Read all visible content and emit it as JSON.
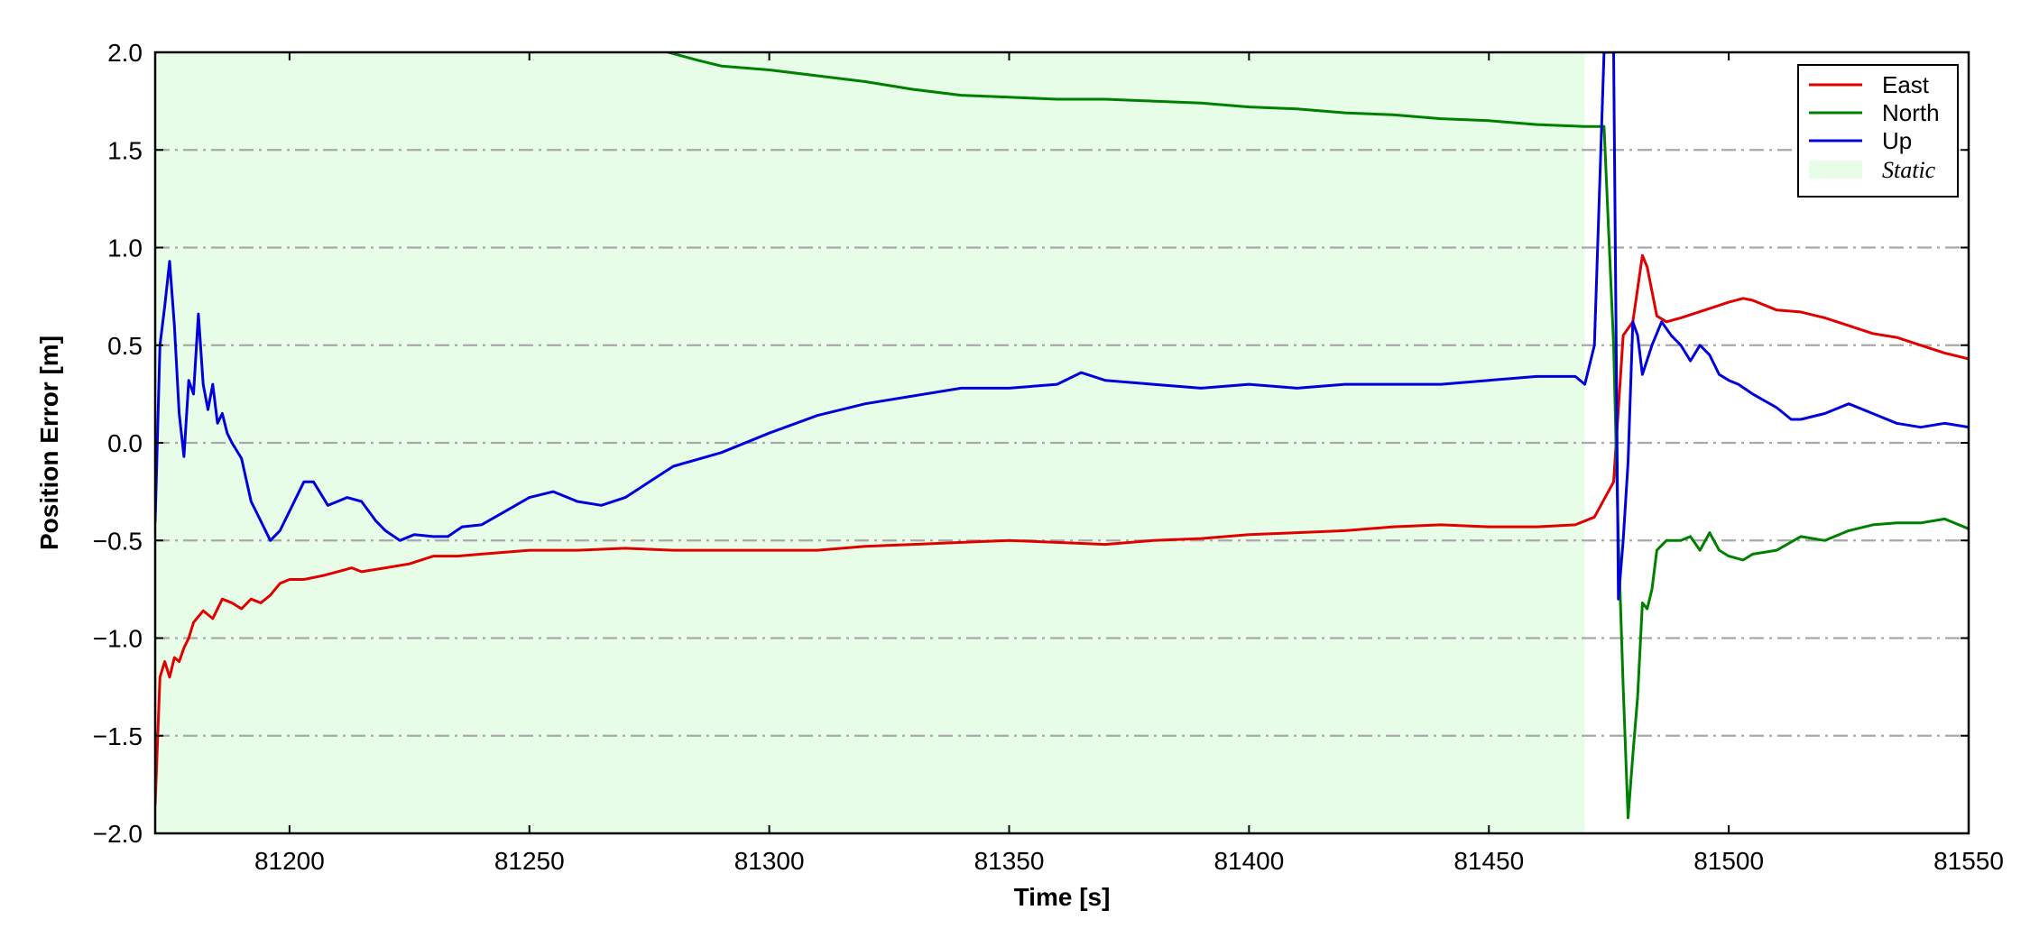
{
  "chart_data": {
    "type": "line",
    "xlabel": "Time [s]",
    "ylabel": "Position Error [m]",
    "xlim": [
      81172,
      81550
    ],
    "ylim": [
      -2.0,
      2.0
    ],
    "xticks": [
      81200,
      81250,
      81300,
      81350,
      81400,
      81450,
      81500,
      81550
    ],
    "xtick_labels": [
      "81200",
      "81250",
      "81300",
      "81350",
      "81400",
      "81450",
      "81500",
      "81550"
    ],
    "yticks": [
      -2.0,
      -1.5,
      -1.0,
      -0.5,
      0.0,
      0.5,
      1.0,
      1.5,
      2.0
    ],
    "ytick_labels": [
      "−2.0",
      "−1.5",
      "−1.0",
      "−0.5",
      "0.0",
      "0.5",
      "1.0",
      "1.5",
      "2.0"
    ],
    "grid": "horizontal dash-dot",
    "legend_position": "top-right",
    "shaded_regions": [
      {
        "name": "Static",
        "x": [
          81172,
          81470
        ],
        "color": "#e8fde8"
      }
    ],
    "series": [
      {
        "name": "East",
        "color": "#e00000",
        "x": [
          81172,
          81173,
          81174,
          81175,
          81176,
          81177,
          81178,
          81179,
          81180,
          81182,
          81183,
          81184,
          81186,
          81188,
          81190,
          81192,
          81194,
          81196,
          81198,
          81200,
          81203,
          81207,
          81210,
          81213,
          81215,
          81220,
          81225,
          81230,
          81235,
          81240,
          81245,
          81250,
          81260,
          81270,
          81280,
          81290,
          81300,
          81310,
          81320,
          81330,
          81340,
          81350,
          81360,
          81370,
          81380,
          81390,
          81400,
          81410,
          81420,
          81430,
          81440,
          81450,
          81460,
          81468,
          81472,
          81476,
          81478,
          81480,
          81482,
          81483,
          81485,
          81487,
          81490,
          81495,
          81500,
          81503,
          81505,
          81510,
          81515,
          81520,
          81525,
          81530,
          81535,
          81540,
          81545,
          81550
        ],
        "y": [
          -1.85,
          -1.2,
          -1.12,
          -1.2,
          -1.1,
          -1.12,
          -1.05,
          -1.0,
          -0.92,
          -0.86,
          -0.88,
          -0.9,
          -0.8,
          -0.82,
          -0.85,
          -0.8,
          -0.82,
          -0.78,
          -0.72,
          -0.7,
          -0.7,
          -0.68,
          -0.66,
          -0.64,
          -0.66,
          -0.64,
          -0.62,
          -0.58,
          -0.58,
          -0.57,
          -0.56,
          -0.55,
          -0.55,
          -0.54,
          -0.55,
          -0.55,
          -0.55,
          -0.55,
          -0.53,
          -0.52,
          -0.51,
          -0.5,
          -0.51,
          -0.52,
          -0.5,
          -0.49,
          -0.47,
          -0.46,
          -0.45,
          -0.43,
          -0.42,
          -0.43,
          -0.43,
          -0.42,
          -0.38,
          -0.2,
          0.55,
          0.62,
          0.96,
          0.9,
          0.65,
          0.62,
          0.64,
          0.68,
          0.72,
          0.74,
          0.73,
          0.68,
          0.67,
          0.64,
          0.6,
          0.56,
          0.54,
          0.5,
          0.46,
          0.43
        ]
      },
      {
        "name": "North",
        "color": "#008000",
        "x": [
          81279,
          81285,
          81290,
          81300,
          81310,
          81320,
          81330,
          81340,
          81350,
          81360,
          81370,
          81380,
          81390,
          81400,
          81410,
          81420,
          81430,
          81440,
          81450,
          81460,
          81470,
          81474,
          81476,
          81477,
          81478,
          81479,
          81480,
          81481,
          81482,
          81483,
          81484,
          81485,
          81487,
          81490,
          81492,
          81494,
          81496,
          81498,
          81500,
          81503,
          81505,
          81510,
          81515,
          81520,
          81525,
          81530,
          81535,
          81540,
          81545,
          81550
        ],
        "y": [
          2.0,
          1.96,
          1.93,
          1.91,
          1.88,
          1.85,
          1.81,
          1.78,
          1.77,
          1.76,
          1.76,
          1.75,
          1.74,
          1.72,
          1.71,
          1.69,
          1.68,
          1.66,
          1.65,
          1.63,
          1.62,
          1.62,
          0.5,
          -0.5,
          -1.25,
          -1.92,
          -1.6,
          -1.3,
          -0.82,
          -0.85,
          -0.75,
          -0.55,
          -0.5,
          -0.5,
          -0.48,
          -0.55,
          -0.46,
          -0.55,
          -0.58,
          -0.6,
          -0.57,
          -0.55,
          -0.48,
          -0.5,
          -0.45,
          -0.42,
          -0.41,
          -0.41,
          -0.39,
          -0.44
        ]
      },
      {
        "name": "Up",
        "color": "#0000dd",
        "x": [
          81172,
          81173,
          81174,
          81175,
          81176,
          81177,
          81178,
          81179,
          81180,
          81181,
          81182,
          81183,
          81184,
          81185,
          81186,
          81187,
          81188,
          81190,
          81192,
          81194,
          81196,
          81198,
          81200,
          81203,
          81205,
          81208,
          81210,
          81212,
          81215,
          81218,
          81220,
          81223,
          81226,
          81230,
          81233,
          81236,
          81240,
          81245,
          81250,
          81255,
          81260,
          81265,
          81270,
          81275,
          81280,
          81290,
          81300,
          81310,
          81320,
          81330,
          81340,
          81350,
          81360,
          81365,
          81370,
          81380,
          81390,
          81400,
          81410,
          81420,
          81430,
          81440,
          81450,
          81460,
          81468,
          81470,
          81472,
          81474,
          81476,
          81477,
          81478,
          81479,
          81480,
          81481,
          81482,
          81484,
          81486,
          81488,
          81490,
          81492,
          81494,
          81496,
          81498,
          81500,
          81502,
          81505,
          81510,
          81513,
          81515,
          81520,
          81525,
          81530,
          81535,
          81540,
          81545,
          81550
        ],
        "y": [
          -0.4,
          0.5,
          0.7,
          0.93,
          0.6,
          0.15,
          -0.07,
          0.32,
          0.25,
          0.66,
          0.3,
          0.17,
          0.3,
          0.1,
          0.15,
          0.05,
          0.0,
          -0.08,
          -0.3,
          -0.4,
          -0.5,
          -0.45,
          -0.35,
          -0.2,
          -0.2,
          -0.32,
          -0.3,
          -0.28,
          -0.3,
          -0.4,
          -0.45,
          -0.5,
          -0.47,
          -0.48,
          -0.48,
          -0.43,
          -0.42,
          -0.35,
          -0.28,
          -0.25,
          -0.3,
          -0.32,
          -0.28,
          -0.2,
          -0.12,
          -0.05,
          0.05,
          0.14,
          0.2,
          0.24,
          0.28,
          0.28,
          0.3,
          0.36,
          0.32,
          0.3,
          0.28,
          0.3,
          0.28,
          0.3,
          0.3,
          0.3,
          0.32,
          0.34,
          0.34,
          0.3,
          0.5,
          2.0,
          2.0,
          -0.8,
          -0.5,
          -0.1,
          0.62,
          0.55,
          0.35,
          0.5,
          0.62,
          0.55,
          0.5,
          0.42,
          0.5,
          0.45,
          0.35,
          0.32,
          0.3,
          0.25,
          0.18,
          0.12,
          0.12,
          0.15,
          0.2,
          0.15,
          0.1,
          0.08,
          0.1,
          0.08
        ]
      }
    ]
  }
}
